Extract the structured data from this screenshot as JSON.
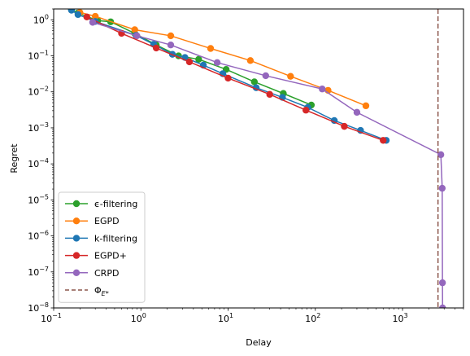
{
  "chart_data": {
    "type": "line",
    "xlabel": "Delay",
    "ylabel": "Regret",
    "xscale": "log",
    "yscale": "log",
    "xlim": [
      0.1,
      5000
    ],
    "ylim": [
      1e-08,
      2
    ],
    "grid": false,
    "legend_position": "lower-left",
    "x_ticks": [
      {
        "value": 0.1,
        "base": "10",
        "exp": "−1"
      },
      {
        "value": 1,
        "base": "10",
        "exp": "0"
      },
      {
        "value": 10,
        "base": "10",
        "exp": "1"
      },
      {
        "value": 100,
        "base": "10",
        "exp": "2"
      },
      {
        "value": 1000,
        "base": "10",
        "exp": "3"
      }
    ],
    "y_ticks": [
      {
        "value": 1e-08,
        "base": "10",
        "exp": "−8"
      },
      {
        "value": 1e-07,
        "base": "10",
        "exp": "−7"
      },
      {
        "value": 1e-06,
        "base": "10",
        "exp": "−6"
      },
      {
        "value": 1e-05,
        "base": "10",
        "exp": "−5"
      },
      {
        "value": 0.0001,
        "base": "10",
        "exp": "−4"
      },
      {
        "value": 0.001,
        "base": "10",
        "exp": "−3"
      },
      {
        "value": 0.01,
        "base": "10",
        "exp": "−2"
      },
      {
        "value": 0.1,
        "base": "10",
        "exp": "−1"
      },
      {
        "value": 1,
        "base": "10",
        "exp": "0"
      }
    ],
    "series": [
      {
        "name": "ϵ-filtering",
        "color": "#2ca02c",
        "style": "line-marker",
        "points": [
          [
            0.16,
            1.9
          ],
          [
            0.19,
            1.55
          ],
          [
            0.32,
            0.95
          ],
          [
            0.45,
            0.88
          ],
          [
            0.85,
            0.42
          ],
          [
            1.5,
            0.2
          ],
          [
            2.7,
            0.1
          ],
          [
            4.6,
            0.08
          ],
          [
            9.5,
            0.042
          ],
          [
            20,
            0.019
          ],
          [
            43,
            0.009
          ],
          [
            90,
            0.0043
          ]
        ]
      },
      {
        "name": "EGPD",
        "color": "#ff7f0e",
        "style": "line-marker",
        "points": [
          [
            0.2,
            1.6
          ],
          [
            0.3,
            1.25
          ],
          [
            0.85,
            0.53
          ],
          [
            2.2,
            0.36
          ],
          [
            6.3,
            0.16
          ],
          [
            18,
            0.074
          ],
          [
            52,
            0.027
          ],
          [
            140,
            0.011
          ],
          [
            380,
            0.0041
          ]
        ]
      },
      {
        "name": "k-filtering",
        "color": "#1f77b4",
        "style": "line-marker",
        "points": [
          [
            0.16,
            1.85
          ],
          [
            0.19,
            1.4
          ],
          [
            0.3,
            0.9
          ],
          [
            0.88,
            0.37
          ],
          [
            1.4,
            0.21
          ],
          [
            2.3,
            0.11
          ],
          [
            3.2,
            0.09
          ],
          [
            5.2,
            0.055
          ],
          [
            8.7,
            0.032
          ],
          [
            21,
            0.013
          ],
          [
            42,
            0.007
          ],
          [
            82,
            0.0037
          ],
          [
            165,
            0.0016
          ],
          [
            330,
            0.00085
          ],
          [
            650,
            0.00045
          ]
        ]
      },
      {
        "name": "EGPD+",
        "color": "#d62728",
        "style": "line-marker",
        "points": [
          [
            0.24,
            1.2
          ],
          [
            0.6,
            0.42
          ],
          [
            1.5,
            0.165
          ],
          [
            3.6,
            0.068
          ],
          [
            10,
            0.024
          ],
          [
            30,
            0.0085
          ],
          [
            78,
            0.0031
          ],
          [
            215,
            0.0011
          ],
          [
            600,
            0.00045
          ]
        ]
      },
      {
        "name": "CRPD",
        "color": "#9467bd",
        "style": "line-marker",
        "points": [
          [
            0.28,
            0.85
          ],
          [
            0.9,
            0.36
          ],
          [
            2.2,
            0.2
          ],
          [
            7.5,
            0.065
          ],
          [
            27,
            0.028
          ],
          [
            120,
            0.012
          ],
          [
            300,
            0.0027
          ],
          [
            2750,
            0.00018
          ],
          [
            2850,
            2.1e-05
          ],
          [
            2870,
            5e-08
          ],
          [
            2880,
            1e-08
          ]
        ]
      },
      {
        "name": "Φ_{E*}",
        "color": "#8c564b",
        "style": "vline-dashed",
        "x": 2550
      }
    ]
  }
}
